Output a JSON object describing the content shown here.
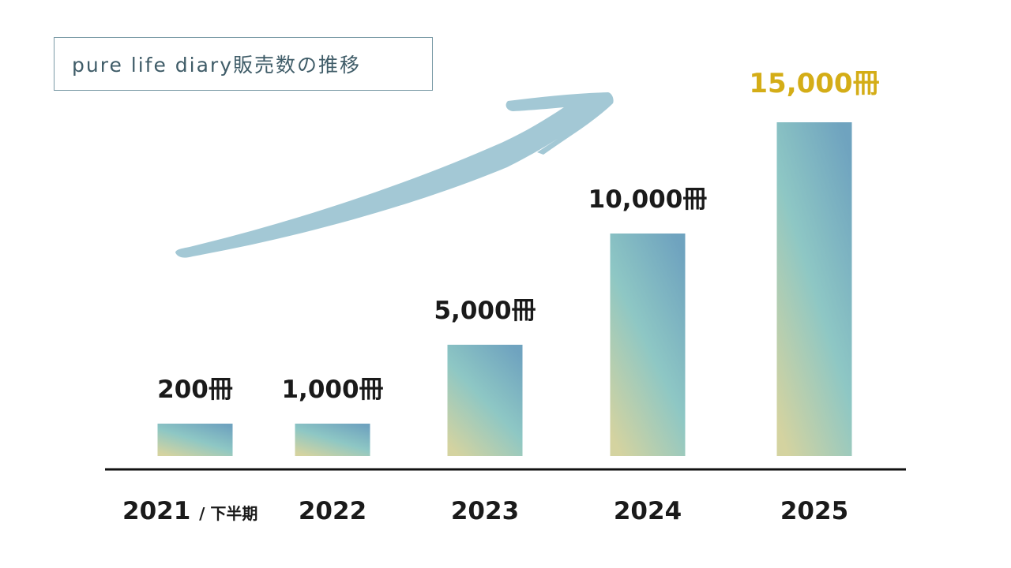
{
  "title": "pure life diary販売数の推移",
  "colors": {
    "bar_top": "#6fa3bf",
    "bar_mid": "#8ec7c4",
    "bar_bottom": "#d4d3a0",
    "highlight": "#d4ad17",
    "arrow": "#a3c8d5",
    "axis": "#111111"
  },
  "chart_data": {
    "type": "bar",
    "title": "pure life diary販売数の推移",
    "categories": [
      "2021",
      "2022",
      "2023",
      "2024",
      "2025"
    ],
    "category_suffix": [
      "/ 下半期",
      "",
      "",
      "",
      ""
    ],
    "values": [
      200,
      1000,
      5000,
      10000,
      15000
    ],
    "value_labels": [
      "200冊",
      "1,000冊",
      "5,000冊",
      "10,000冊",
      "15,000冊"
    ],
    "highlight_index": 4,
    "unit": "冊",
    "xlabel": "",
    "ylabel": "",
    "grid": false,
    "annotation": "upward-trend-arrow"
  }
}
